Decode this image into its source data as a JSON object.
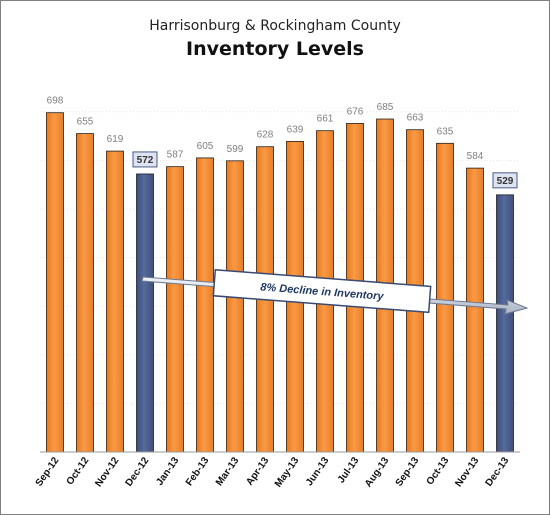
{
  "chart_data": {
    "type": "bar",
    "subtitle": "Harrisonburg & Rockingham County",
    "title": "Inventory Levels",
    "xlabel": "",
    "ylabel": "",
    "categories": [
      "Sep-12",
      "Oct-12",
      "Nov-12",
      "Dec-12",
      "Jan-13",
      "Feb-13",
      "Mar-13",
      "Apr-13",
      "May-13",
      "Jun-13",
      "Jul-13",
      "Aug-13",
      "Sep-13",
      "Oct-13",
      "Nov-13",
      "Dec-13"
    ],
    "values": [
      698,
      655,
      619,
      572,
      587,
      605,
      599,
      628,
      639,
      661,
      676,
      685,
      663,
      635,
      584,
      529
    ],
    "highlighted": [
      "Dec-12",
      "Dec-13"
    ],
    "ylim": [
      0,
      720
    ],
    "grid": true,
    "legend": "none",
    "annotation": "8% Decline in Inventory",
    "colors": {
      "bar": "#f58a2f",
      "highlight": "#485a88",
      "label_box": "#dde3f0",
      "label_box_border": "#485a88",
      "annotation_border": "#3b4a73"
    }
  }
}
